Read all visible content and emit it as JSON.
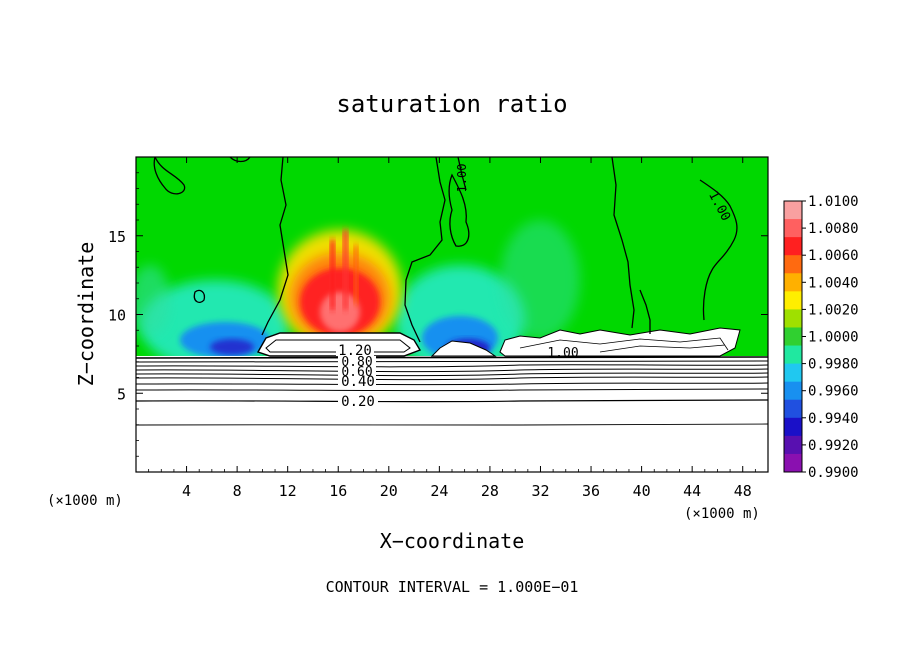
{
  "chart_data": {
    "type": "heatmap",
    "title": "saturation ratio",
    "xlabel": "X−coordinate",
    "ylabel": "Z−coordinate",
    "x_unit_left": "(×1000 m)",
    "x_unit_right": "(×1000 m)",
    "footer": "CONTOUR INTERVAL = 1.000E−01",
    "xlim": [
      0,
      50
    ],
    "ylim": [
      0,
      20
    ],
    "x_ticks": [
      4,
      8,
      12,
      16,
      20,
      24,
      28,
      32,
      36,
      40,
      44,
      48
    ],
    "x_tick_labels": [
      "4",
      "8",
      "12",
      "16",
      "20",
      "24",
      "28",
      "32",
      "36",
      "40",
      "44",
      "48"
    ],
    "y_ticks": [
      5,
      10,
      15
    ],
    "y_tick_labels": [
      "5",
      "10",
      "15"
    ],
    "colorbar": {
      "labels": [
        "1.0100",
        "1.0080",
        "1.0060",
        "1.0040",
        "1.0020",
        "1.0000",
        "0.9980",
        "0.9960",
        "0.9940",
        "0.9920",
        "0.9900"
      ],
      "values": [
        1.01,
        1.008,
        1.006,
        1.004,
        1.002,
        1.0,
        0.998,
        0.996,
        0.994,
        0.992,
        0.99
      ],
      "colors": [
        "#f9a0a0",
        "#ff6060",
        "#ff2020",
        "#ff6a10",
        "#ffb000",
        "#ffee00",
        "#9fe000",
        "#30d030",
        "#20e8a0",
        "#20c8f0",
        "#1890f0",
        "#2050e0",
        "#1a10c8",
        "#5810b0",
        "#8a10b0"
      ]
    },
    "background_level": 1.0,
    "regions": [
      {
        "name": "high supersaturation plume",
        "x_range": [
          12,
          21
        ],
        "z_range": [
          8.5,
          15.5
        ],
        "peak": 1.008
      },
      {
        "name": "subsaturated band left",
        "x_range": [
          4,
          10
        ],
        "z_range": [
          7.5,
          9.5
        ],
        "min": 0.993
      },
      {
        "name": "subsaturated band middle",
        "x_range": [
          22,
          27
        ],
        "z_range": [
          7.5,
          10
        ],
        "min": 0.992
      }
    ],
    "contour_labels": [
      "1.20",
      "0.80",
      "0.60",
      "0.40",
      "0.20",
      "1.00",
      "1.00",
      "1.00"
    ],
    "contour_levels_below_cloud": [
      1.2,
      1.0,
      0.9,
      0.8,
      0.7,
      0.6,
      0.5,
      0.4,
      0.3,
      0.2,
      0.1
    ]
  }
}
